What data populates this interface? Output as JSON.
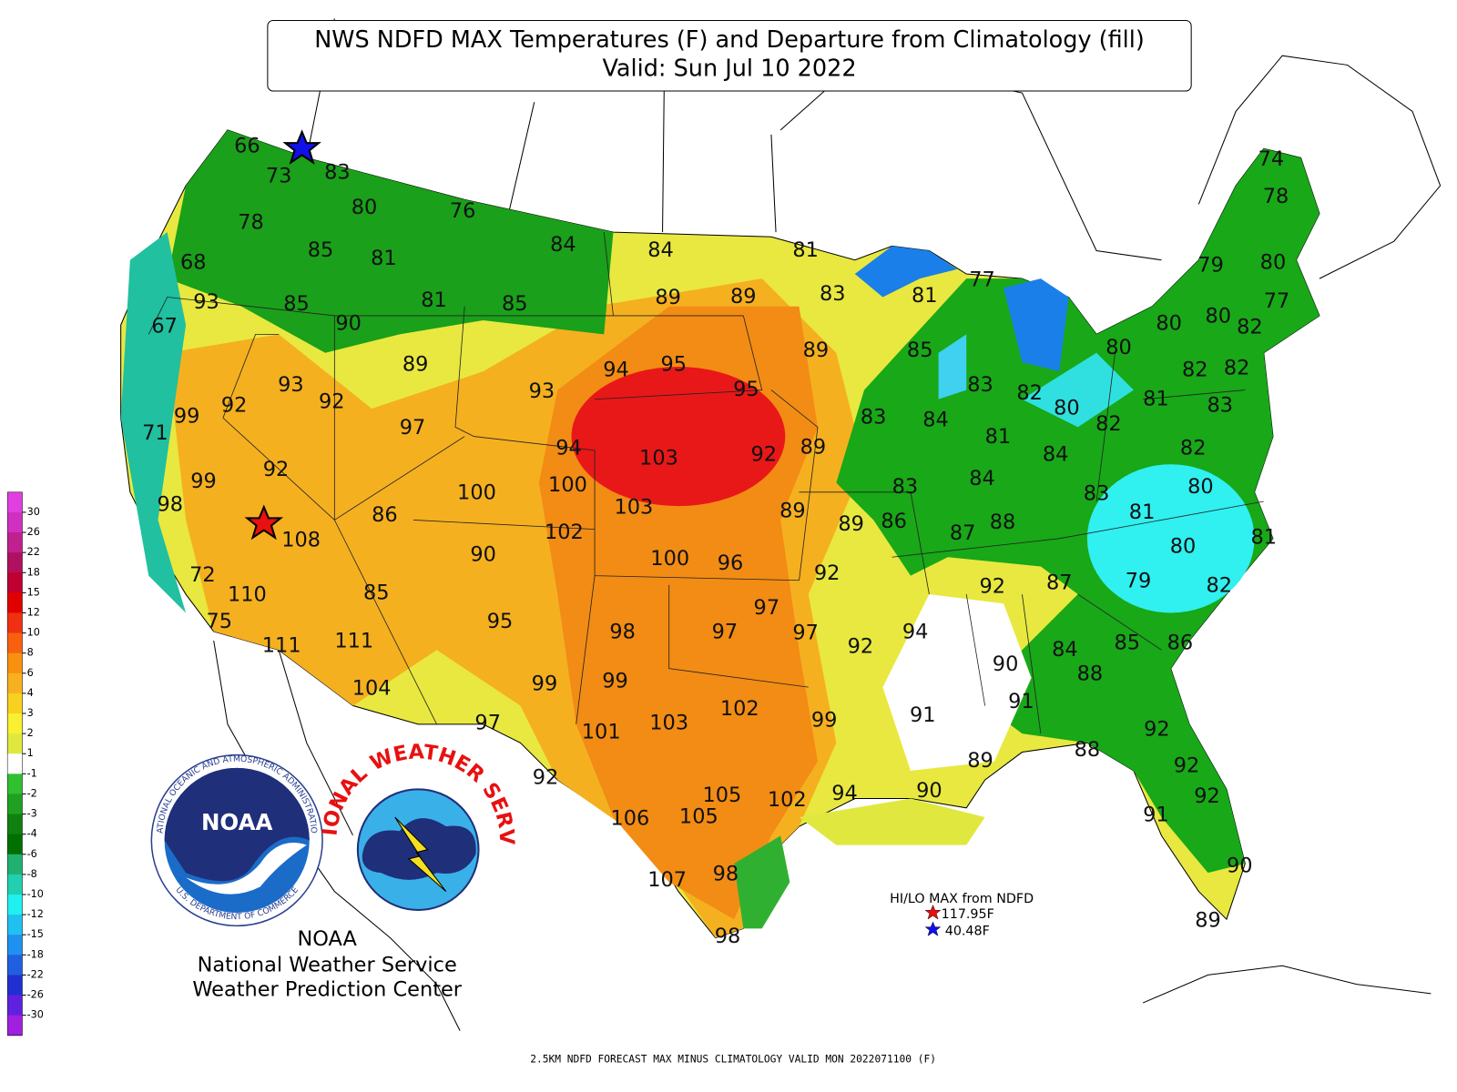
{
  "header": {
    "title": "NWS NDFD MAX Temperatures (F) and Departure from Climatology (fill)",
    "subtitle": "Valid: Sun Jul 10 2022"
  },
  "legend": {
    "ticks": [
      30,
      26,
      22,
      18,
      15,
      12,
      10,
      8,
      6,
      4,
      3,
      2,
      1,
      -1,
      -2,
      -3,
      -4,
      -6,
      -8,
      -10,
      -12,
      -15,
      -18,
      -22,
      -26,
      -30
    ],
    "colors": [
      "#e040e0",
      "#d030c0",
      "#c02090",
      "#b01060",
      "#c00030",
      "#e00000",
      "#f03010",
      "#f86010",
      "#f89010",
      "#f8b020",
      "#f8d020",
      "#f8f030",
      "#e0e840",
      "#ffffff",
      "#30c030",
      "#20a020",
      "#108010",
      "#007000",
      "#20b070",
      "#20d0b0",
      "#20f0f0",
      "#20c0f0",
      "#2090f0",
      "#2060e0",
      "#2030d0",
      "#6020e0",
      "#a020e0"
    ]
  },
  "temperatures": [
    66,
    73,
    83,
    80,
    76,
    78,
    85,
    81,
    84,
    84,
    81,
    68,
    93,
    85,
    81,
    85,
    89,
    89,
    83,
    81,
    77,
    67,
    90,
    89,
    94,
    95,
    89,
    85,
    79,
    80,
    74,
    78,
    77,
    80,
    80,
    82,
    80,
    93,
    92,
    92,
    99,
    93,
    95,
    83,
    82,
    80,
    82,
    82,
    81,
    83,
    97,
    83,
    84,
    82,
    71,
    94,
    103,
    92,
    89,
    81,
    84,
    82,
    92,
    99,
    100,
    100,
    83,
    84,
    80,
    83,
    98,
    103,
    86,
    89,
    89,
    86,
    87,
    88,
    81,
    81,
    108,
    102,
    90,
    100,
    96,
    92,
    80,
    72,
    110,
    85,
    79,
    82,
    92,
    87,
    97,
    75,
    95,
    98,
    97,
    97,
    94,
    92,
    84,
    85,
    86,
    88,
    111,
    111,
    90,
    104,
    99,
    99,
    91,
    91,
    102,
    101,
    103,
    97,
    99,
    92,
    88,
    89,
    92,
    92,
    92,
    90,
    94,
    105,
    102,
    106,
    105,
    91,
    107,
    98,
    90,
    89,
    98
  ],
  "extremes": {
    "title": "HI/LO MAX from NDFD",
    "high": "117.95F",
    "low": "40.48F"
  },
  "logos": {
    "noaa_ring_top": "NATIONAL OCEANIC AND ATMOSPHERIC ADMINISTRATION",
    "noaa_ring_bottom": "U.S. DEPARTMENT OF COMMERCE",
    "noaa_center": "NOAA",
    "nws_ring": "NATIONAL WEATHER SERVICE"
  },
  "credits": [
    "NOAA",
    "National Weather Service",
    "Weather Prediction Center"
  ],
  "footer": "2.5KM NDFD FORECAST MAX MINUS CLIMATOLOGY VALID MON 2022071100 (F)"
}
